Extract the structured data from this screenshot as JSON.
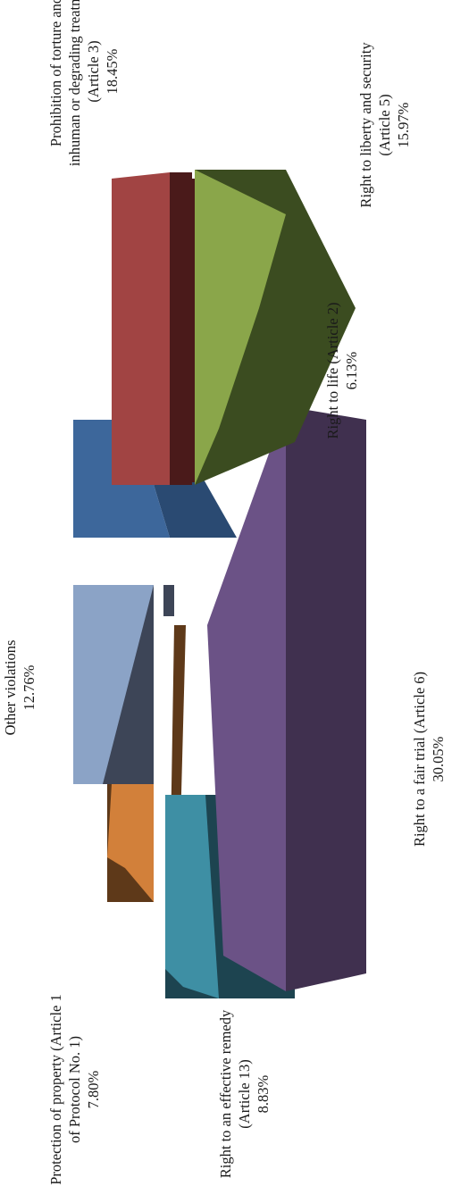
{
  "chart_data": {
    "type": "pie",
    "orientation": "rotated-90-counterclockwise",
    "style": "3d-exploded",
    "title": "",
    "slices": [
      {
        "key": "fair_trial",
        "label_lines": [
          "Right to a fair trial (Article 6)",
          "30.05%"
        ],
        "percent": 30.05,
        "colors": {
          "top": "#6b5286",
          "side": "#40304f"
        }
      },
      {
        "key": "life",
        "label_lines": [
          "Right to life (Article 2)",
          "6.13%"
        ],
        "percent": 6.13,
        "colors": {
          "top": "#3d679b",
          "side": "#2a4a72"
        }
      },
      {
        "key": "torture",
        "label_lines": [
          "Prohibition of torture and",
          "inhuman or degrading treatment",
          "(Article 3)",
          "18.45%"
        ],
        "percent": 18.45,
        "colors": {
          "top": "#a14443",
          "side": "#4a1a1a"
        }
      },
      {
        "key": "liberty",
        "label_lines": [
          "Right to liberty and security",
          "(Article 5)",
          "15.97%"
        ],
        "percent": 15.97,
        "colors": {
          "top": "#8aa64a",
          "side": "#3b4c20"
        }
      },
      {
        "key": "remedy",
        "label_lines": [
          "Right to an effective remedy",
          "(Article 13)",
          "8.83%"
        ],
        "percent": 8.83,
        "colors": {
          "top": "#3e8fa4",
          "side": "#1d4450"
        }
      },
      {
        "key": "property",
        "label_lines": [
          "Protection of property (Article 1",
          "of Protocol No. 1)",
          "7.80%"
        ],
        "percent": 7.8,
        "colors": {
          "top": "#d2803a",
          "side": "#5e3919"
        }
      },
      {
        "key": "other",
        "label_lines": [
          "Other violations",
          "12.76%"
        ],
        "percent": 12.76,
        "colors": {
          "top": "#8ba3c6",
          "side": "#3d4557"
        }
      }
    ]
  }
}
